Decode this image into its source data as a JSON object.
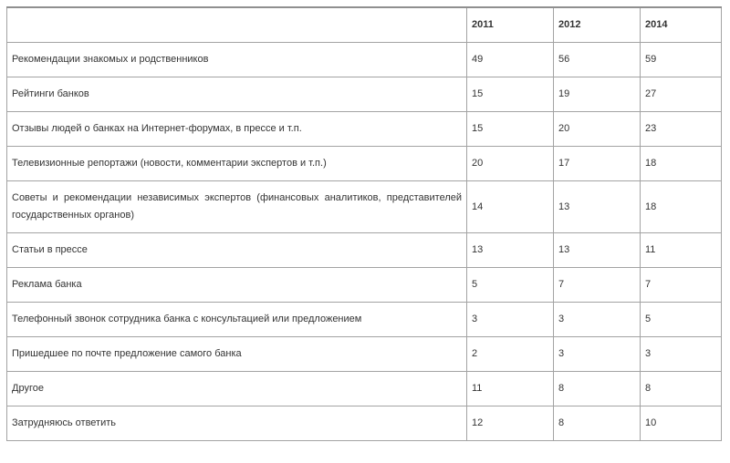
{
  "colors": {
    "background": "#ffffff",
    "border": "#a3a3a3",
    "text": "#333333"
  },
  "chart_data": {
    "type": "table",
    "title": "",
    "categories": [
      "2011",
      "2012",
      "2014"
    ],
    "corner_label": "",
    "series": [
      {
        "name": "Рекомендации знакомых и родственников",
        "values": [
          49,
          56,
          59
        ]
      },
      {
        "name": "Рейтинги банков",
        "values": [
          15,
          19,
          27
        ]
      },
      {
        "name": "Отзывы людей о банках на Интернет-форумах, в прессе и т.п.",
        "values": [
          15,
          20,
          23
        ]
      },
      {
        "name": "Телевизионные репортажи (новости, комментарии экспертов и т.п.)",
        "values": [
          20,
          17,
          18
        ]
      },
      {
        "name": "Советы и рекомендации независимых экспертов (финансовых аналитиков, представителей государственных органов)",
        "values": [
          14,
          13,
          18
        ]
      },
      {
        "name": "Статьи в прессе",
        "values": [
          13,
          13,
          11
        ]
      },
      {
        "name": "Реклама банка",
        "values": [
          5,
          7,
          7
        ]
      },
      {
        "name": "Телефонный звонок сотрудника банка с консультацией или предложением",
        "values": [
          3,
          3,
          5
        ]
      },
      {
        "name": "Пришедшее по почте предложение самого банка",
        "values": [
          2,
          3,
          3
        ]
      },
      {
        "name": "Другое",
        "values": [
          11,
          8,
          8
        ]
      },
      {
        "name": "Затрудняюсь ответить",
        "values": [
          12,
          8,
          10
        ]
      }
    ],
    "layout": {
      "grid": true,
      "legend": "none"
    }
  }
}
